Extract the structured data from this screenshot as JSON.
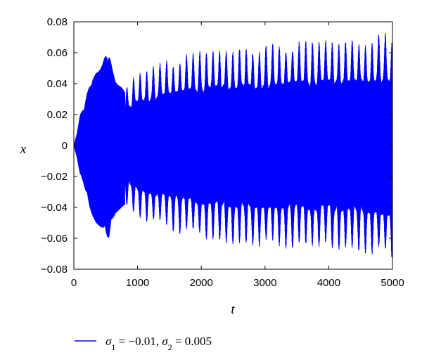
{
  "chart_data": {
    "type": "line",
    "title": "",
    "xlabel": "t",
    "ylabel": "x",
    "xlim": [
      0,
      5000
    ],
    "ylim": [
      -0.08,
      0.08
    ],
    "x_ticks": [
      0,
      1000,
      2000,
      3000,
      4000,
      5000
    ],
    "y_ticks": [
      0.08,
      0.06,
      0.04,
      0.02,
      0,
      -0.02,
      -0.04,
      -0.06,
      -0.08
    ],
    "x_tick_labels": [
      "0",
      "1000",
      "2000",
      "3000",
      "4000",
      "5000"
    ],
    "y_tick_labels": [
      "0.08",
      "0.06",
      "0.04",
      "0.02",
      "0",
      "−0.02",
      "−0.04",
      "−0.06",
      "−0.08"
    ],
    "grid": false,
    "legend_position": "bottom",
    "series": [
      {
        "name": "σ1 = −0.01, σ2 = 0.005",
        "color": "#0000ff",
        "envelope": {
          "t": [
            0,
            50,
            100,
            150,
            200,
            250,
            300,
            350,
            400,
            450,
            500,
            550,
            600,
            650,
            700,
            750,
            800,
            1000,
            1500,
            2000,
            2500,
            3000,
            3500,
            4000,
            4500,
            5000
          ],
          "amplitude": [
            0.0,
            0.008,
            0.02,
            0.024,
            0.032,
            0.04,
            0.046,
            0.05,
            0.052,
            0.054,
            0.058,
            0.06,
            0.05,
            0.044,
            0.042,
            0.04,
            0.038,
            0.048,
            0.056,
            0.062,
            0.065,
            0.066,
            0.068,
            0.069,
            0.07,
            0.074
          ]
        }
      }
    ]
  }
}
